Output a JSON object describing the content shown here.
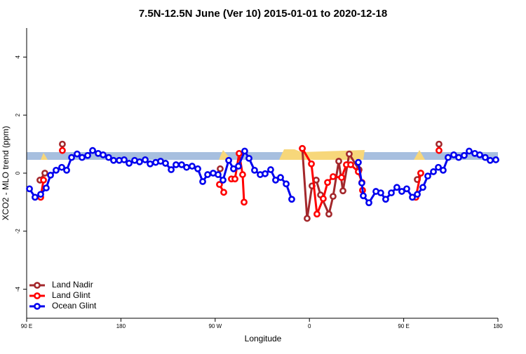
{
  "chart_data": {
    "type": "line",
    "title": "7.5N-12.5N June (Ver 10)   2015-01-01 to 2020-12-18",
    "xlabel": "Longitude",
    "ylabel": "XCO2 - MLO trend (ppm)",
    "xlim": [
      90,
      540
    ],
    "xticks": [
      {
        "value": 90,
        "label": "90 E"
      },
      180,
      {
        "value": 270,
        "label": "90 W"
      },
      {
        "value": 360,
        "label": "0"
      },
      {
        "value": 450,
        "label": "90 E"
      },
      {
        "value": 540,
        "label": "180"
      }
    ],
    "ylim": [
      -5,
      5
    ],
    "yticks": [
      -4,
      -2,
      0,
      2,
      4
    ],
    "legend": "bottom-left",
    "series": [
      {
        "name": "Land Nadir",
        "color": "#a3282c",
        "x": [
          102.7,
          107.4,
          null,
          124.1,
          null,
          274.8,
          null,
          353.2,
          357.8,
          362.5,
          366.5,
          370.6,
          378.6,
          382.6,
          388,
          392,
          398,
          407.4,
          null,
          463,
          466.3,
          null,
          483.7
        ],
        "values": [
          -0.24,
          0,
          null,
          1.0,
          null,
          0.15,
          null,
          0.85,
          -1.56,
          -0.44,
          -0.24,
          -0.75,
          -1.41,
          -0.8,
          0.41,
          -0.61,
          0.66,
          0.12,
          null,
          -0.22,
          0,
          null,
          1.0
        ]
      },
      {
        "name": "Land Glint",
        "color": "#ff0000",
        "x": [
          103.4,
          106.1,
          null,
          124.1,
          null,
          274.1,
          278.2,
          null,
          285.5,
          288.9,
          292.9,
          296.2,
          297.6,
          null,
          353.2,
          361.9,
          367.2,
          373.2,
          377.3,
          382.6,
          390.7,
          395.3,
          399.4,
          406.7,
          410.1,
          410.7,
          null,
          461.6,
          466.3,
          null,
          483.7
        ],
        "values": [
          -0.83,
          -0.24,
          null,
          0.78,
          null,
          -0.39,
          -0.66,
          null,
          -0.2,
          -0.2,
          0.68,
          -0.05,
          -1.0,
          null,
          0.85,
          0.32,
          -1.41,
          -0.88,
          -0.32,
          -0.12,
          -0.15,
          0.29,
          0.29,
          0.05,
          -0.32,
          -0.59,
          null,
          -0.83,
          0,
          null,
          0.78
        ]
      },
      {
        "name": "Ocean Glint",
        "color": "#0000ee",
        "x": [
          92.7,
          98,
          103.4,
          108.7,
          112.8,
          118.1,
          123.5,
          128.2,
          132.9,
          138.2,
          142.9,
          148.3,
          153,
          158.3,
          163,
          168.3,
          173,
          178.4,
          183.1,
          187.8,
          193.1,
          197.8,
          203.2,
          207.9,
          213.2,
          217.9,
          222.6,
          228,
          232.6,
          238,
          242.7,
          248,
          253.4,
          258.1,
          262.8,
          268.1,
          272.8,
          277.5,
          282.9,
          287.5,
          292.2,
          298.2,
          302.3,
          307.6,
          313,
          317.7,
          323,
          327.7,
          332.4,
          337.8,
          343.1,
          null,
          406.7,
          410,
          411.4,
          416.8,
          423.5,
          428.1,
          432.8,
          438.2,
          443.5,
          448.2,
          452.9,
          458.3,
          463,
          468.3,
          473,
          478.4,
          483.1,
          487.7,
          492.4,
          497.8,
          502.5,
          507.8,
          512.5,
          517.9,
          522.6,
          527.9,
          532.6,
          538
        ],
        "values": [
          -0.54,
          -0.83,
          -0.73,
          -0.51,
          -0.07,
          0.1,
          0.2,
          0.1,
          0.54,
          0.66,
          0.54,
          0.61,
          0.78,
          0.68,
          0.63,
          0.54,
          0.44,
          0.44,
          0.46,
          0.34,
          0.44,
          0.39,
          0.46,
          0.32,
          0.37,
          0.41,
          0.34,
          0.12,
          0.29,
          0.29,
          0.2,
          0.24,
          0.15,
          -0.29,
          -0.05,
          0,
          -0.05,
          -0.24,
          0.44,
          0.15,
          0.24,
          0.76,
          0.51,
          0.1,
          -0.05,
          -0.02,
          0.12,
          -0.24,
          -0.15,
          -0.37,
          -0.9,
          null,
          0.37,
          -0.34,
          -0.78,
          -1.02,
          -0.63,
          -0.68,
          -0.9,
          -0.68,
          -0.49,
          -0.63,
          -0.54,
          -0.83,
          -0.73,
          -0.49,
          -0.1,
          0.05,
          0.2,
          0.1,
          0.54,
          0.63,
          0.54,
          0.61,
          0.76,
          0.68,
          0.63,
          0.54,
          0.44,
          0.46
        ]
      }
    ]
  }
}
